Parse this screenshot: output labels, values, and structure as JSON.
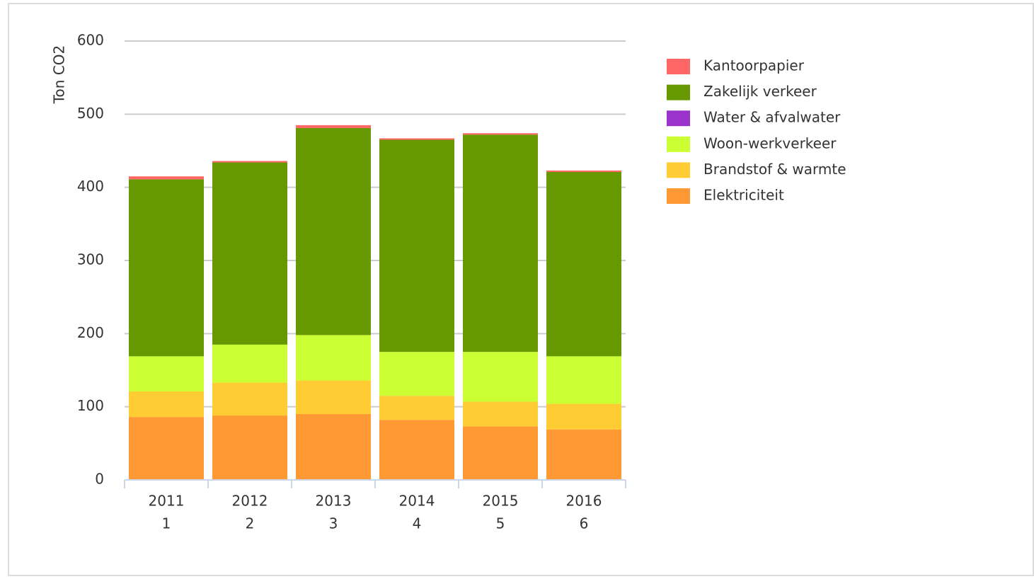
{
  "chart_data": {
    "type": "stacked-bar",
    "y_label": "Ton CO2",
    "categories": [
      [
        "2011",
        "1"
      ],
      [
        "2012",
        "2"
      ],
      [
        "2013",
        "3"
      ],
      [
        "2014",
        "4"
      ],
      [
        "2015",
        "5"
      ],
      [
        "2016",
        "6"
      ]
    ],
    "series": [
      {
        "name": "Elektriciteit",
        "color": "#ff9933",
        "values": [
          86,
          88,
          90,
          82,
          73,
          69
        ]
      },
      {
        "name": "Brandstof & warmte",
        "color": "#ffcc33",
        "values": [
          35,
          45,
          46,
          33,
          34,
          35
        ]
      },
      {
        "name": "Woon-werkverkeer",
        "color": "#ccff33",
        "values": [
          48,
          52,
          62,
          60,
          68,
          65
        ]
      },
      {
        "name": "Water & afvalwater",
        "color": "#9933cc",
        "values": [
          0,
          0,
          0,
          0,
          0,
          0
        ]
      },
      {
        "name": "Zakelijk verkeer",
        "color": "#669900",
        "values": [
          242,
          249,
          283,
          290,
          297,
          252
        ]
      },
      {
        "name": "Kantoorpapier",
        "color": "#ff6666",
        "values": [
          4,
          2,
          4,
          2,
          2,
          2
        ]
      }
    ],
    "ylim": [
      0,
      600
    ],
    "yticks": [
      0,
      100,
      200,
      300,
      400,
      500,
      600
    ],
    "grid": true,
    "legend": "right"
  }
}
